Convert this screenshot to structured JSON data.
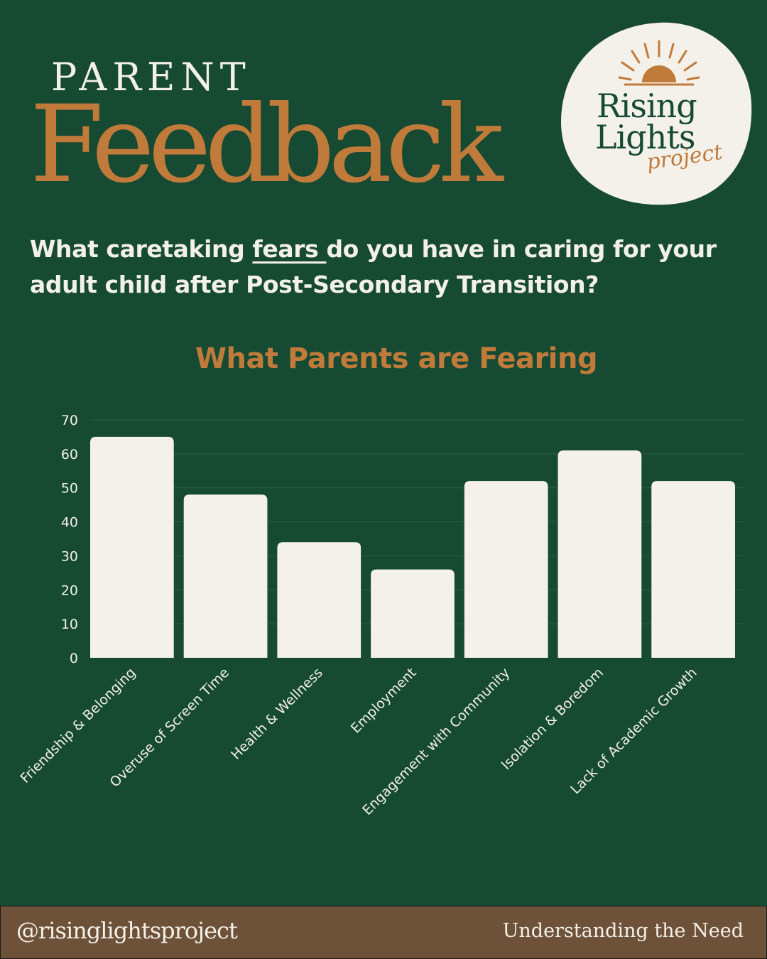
{
  "header": {
    "parent_label": "PARENT",
    "feedback_label": "Feedback"
  },
  "logo": {
    "line1": "Rising",
    "line2": "Lights",
    "line3": "project",
    "icon": "sunrise-icon"
  },
  "question": {
    "before": "What caretaking ",
    "highlight": "fears ",
    "after": "do you have in caring for your adult child after Post-Secondary Transition?"
  },
  "chart_data": {
    "type": "bar",
    "title": "What Parents are Fearing",
    "categories": [
      "Friendship & Belonging",
      "Overuse of Screen Time",
      "Health & Wellness",
      "Employment",
      "Engagement with Community",
      "Isolation & Boredom",
      "Lack of Academic Growth"
    ],
    "values": [
      65,
      48,
      34,
      26,
      52,
      61,
      52
    ],
    "yticks": [
      0,
      10,
      20,
      30,
      40,
      50,
      60,
      70
    ],
    "ylim": [
      0,
      70
    ],
    "grid": true,
    "legend": "none",
    "colors": {
      "bar": "#f4f1ea",
      "grid": "#2c5f46",
      "text": "#f3f0e8"
    }
  },
  "footer": {
    "handle": "@risinglightsproject",
    "tagline": "Understanding the Need"
  }
}
